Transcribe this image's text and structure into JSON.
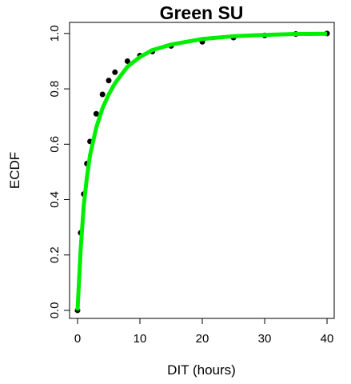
{
  "chart_data": {
    "type": "scatter",
    "title": "Green SU",
    "x_label": "DIT (hours)",
    "y_label": "ECDF",
    "xlim": [
      -1.28,
      41.15
    ],
    "ylim": [
      -0.029,
      1.04
    ],
    "xticks": [
      0,
      10,
      20,
      30,
      40
    ],
    "yticks": [
      {
        "value": 0,
        "label": "0.0"
      },
      0.2,
      0.4,
      0.6,
      0.8,
      {
        "value": 1,
        "label": "1.0"
      }
    ],
    "series": [
      {
        "color": "#000000",
        "style": "points",
        "x": [
          0,
          0.5,
          1,
          1.5,
          2,
          3,
          4,
          5,
          6,
          8,
          10,
          12,
          15,
          20,
          25,
          30,
          35,
          40
        ],
        "values": [
          0,
          0.28,
          0.42,
          0.53,
          0.61,
          0.71,
          0.78,
          0.83,
          0.86,
          0.9,
          0.92,
          0.935,
          0.955,
          0.97,
          0.985,
          0.993,
          0.998,
          1.0
        ]
      },
      {
        "color": "#00ee00",
        "style": "line",
        "x": [
          0,
          0.5,
          1,
          1.5,
          2,
          3,
          4,
          5,
          6,
          8,
          10,
          12,
          15,
          20,
          25,
          30,
          35,
          40
        ],
        "values": [
          0,
          0.22,
          0.38,
          0.48,
          0.56,
          0.66,
          0.73,
          0.78,
          0.82,
          0.88,
          0.915,
          0.94,
          0.96,
          0.98,
          0.99,
          0.995,
          0.998,
          0.999
        ]
      }
    ]
  }
}
